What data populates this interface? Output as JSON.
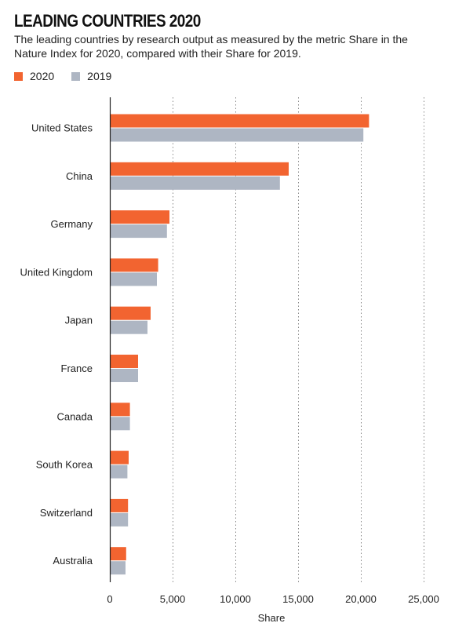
{
  "title": "LEADING COUNTRIES 2020",
  "subtitle": "The leading countries by research output as measured by the metric Share in the Nature Index for 2020, compared with their Share for 2019.",
  "colors": {
    "series_2020": "#f26430",
    "series_2019": "#aeb6c3",
    "grid": "#888888",
    "axis": "#222222"
  },
  "chart_data": {
    "type": "bar",
    "orientation": "horizontal",
    "categories": [
      "United States",
      "China",
      "Germany",
      "United Kingdom",
      "Japan",
      "France",
      "Canada",
      "South Korea",
      "Switzerland",
      "Australia"
    ],
    "series": [
      {
        "name": "2020",
        "values": [
          20650,
          14250,
          4750,
          3850,
          3250,
          2250,
          1600,
          1500,
          1450,
          1300
        ]
      },
      {
        "name": "2019",
        "values": [
          20200,
          13550,
          4550,
          3750,
          3000,
          2250,
          1600,
          1400,
          1450,
          1250
        ]
      }
    ],
    "xlabel": "Share",
    "xlim": [
      0,
      25000
    ],
    "xticks": [
      0,
      5000,
      10000,
      15000,
      20000,
      25000
    ],
    "xtick_labels": [
      "0",
      "5,000",
      "10,000",
      "15,000",
      "20,000",
      "25,000"
    ],
    "grid": "vertical dotted",
    "legend_position": "top-left"
  }
}
